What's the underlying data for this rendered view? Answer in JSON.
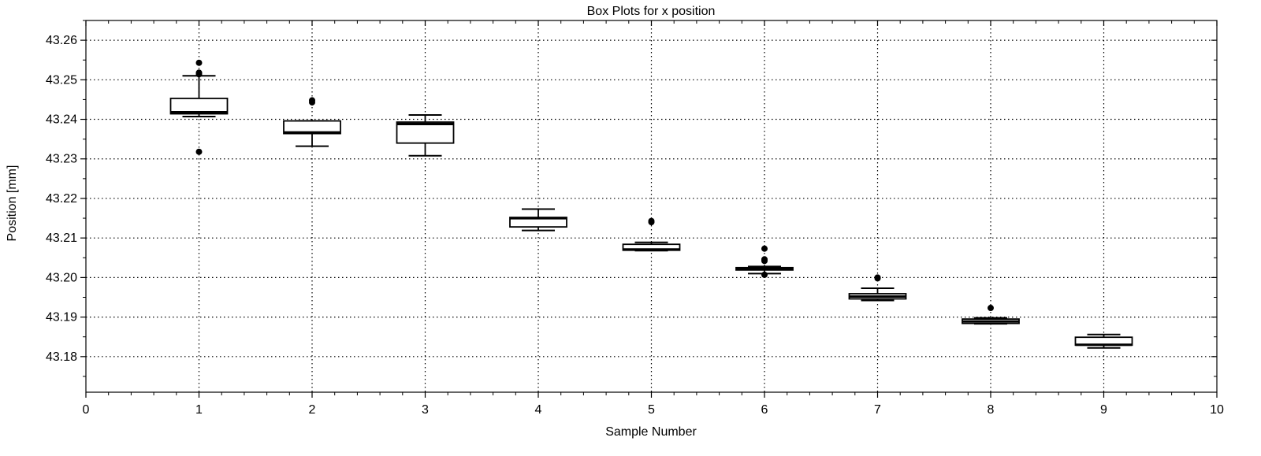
{
  "chart_data": {
    "type": "box",
    "title": "Box Plots for x position",
    "xlabel": "Sample Number",
    "ylabel": "Position [mm]",
    "xlim": [
      0,
      10
    ],
    "ylim": [
      43.171,
      43.265
    ],
    "x_ticks": [
      "0",
      "1",
      "2",
      "3",
      "4",
      "5",
      "6",
      "7",
      "8",
      "9",
      "10"
    ],
    "y_ticks": [
      "43.18",
      "43.19",
      "43.20",
      "43.21",
      "43.22",
      "43.23",
      "43.24",
      "43.25",
      "43.26"
    ],
    "grid": true,
    "boxes": [
      {
        "x": 1,
        "whisker_low": 43.2407,
        "q1": 43.2414,
        "median": 43.2418,
        "q3": 43.2453,
        "whisker_high": 43.251,
        "outliers": [
          43.2543,
          43.2518,
          43.2514,
          43.2318
        ]
      },
      {
        "x": 2,
        "whisker_low": 43.2332,
        "q1": 43.2364,
        "median": 43.2367,
        "q3": 43.2396,
        "whisker_high": 43.2396,
        "outliers": [
          43.2448,
          43.2443
        ]
      },
      {
        "x": 3,
        "whisker_low": 43.2308,
        "q1": 43.234,
        "median": 43.2388,
        "q3": 43.2393,
        "whisker_high": 43.2411,
        "outliers": []
      },
      {
        "x": 4,
        "whisker_low": 43.2119,
        "q1": 43.2128,
        "median": 43.215,
        "q3": 43.2152,
        "whisker_high": 43.2173,
        "outliers": []
      },
      {
        "x": 5,
        "whisker_low": 43.2068,
        "q1": 43.2069,
        "median": 43.2071,
        "q3": 43.2084,
        "whisker_high": 43.2089,
        "outliers": [
          43.214,
          43.2143
        ]
      },
      {
        "x": 6,
        "whisker_low": 43.201,
        "q1": 43.2019,
        "median": 43.2022,
        "q3": 43.2025,
        "whisker_high": 43.2028,
        "outliers": [
          43.2073,
          43.2046,
          43.2042,
          43.2007
        ]
      },
      {
        "x": 7,
        "whisker_low": 43.1942,
        "q1": 43.1946,
        "median": 43.1952,
        "q3": 43.1959,
        "whisker_high": 43.1973,
        "outliers": [
          43.1998,
          43.2
        ]
      },
      {
        "x": 8,
        "whisker_low": 43.1883,
        "q1": 43.1884,
        "median": 43.1889,
        "q3": 43.1895,
        "whisker_high": 43.1898,
        "outliers": [
          43.1923
        ]
      },
      {
        "x": 9,
        "whisker_low": 43.1822,
        "q1": 43.1829,
        "median": 43.183,
        "q3": 43.1849,
        "whisker_high": 43.1856,
        "outliers": []
      }
    ]
  }
}
